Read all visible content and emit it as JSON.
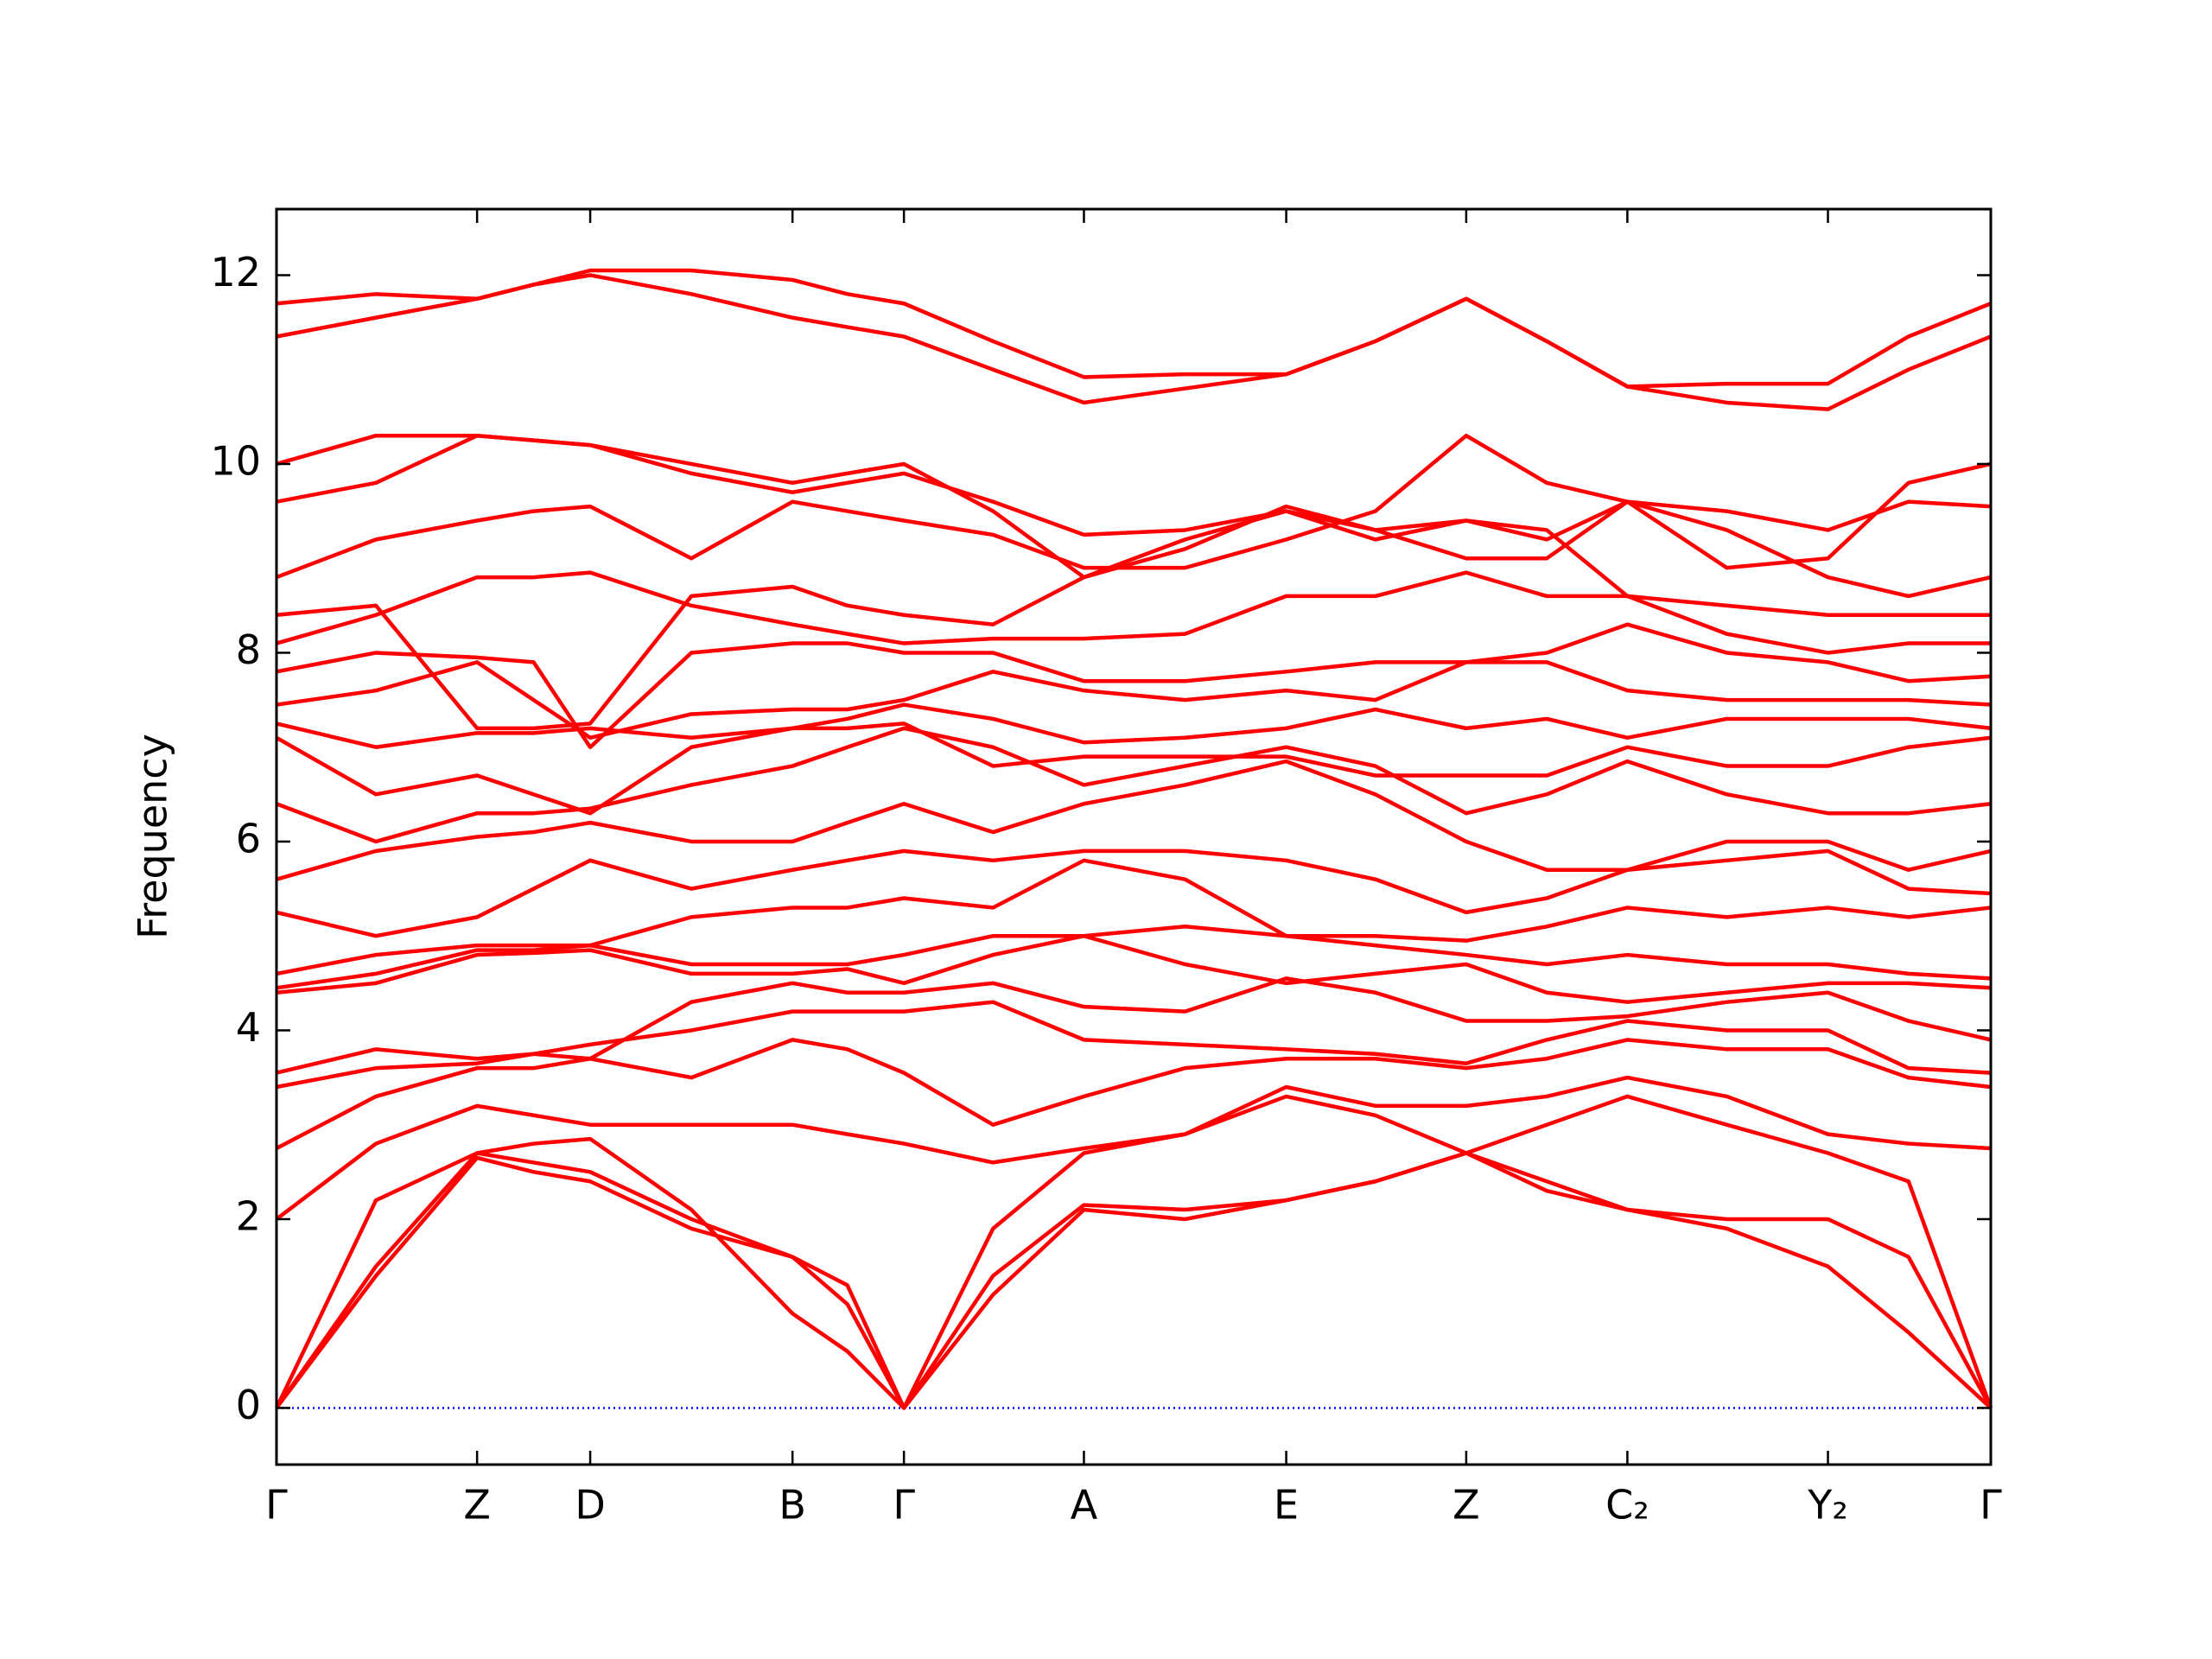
{
  "chart_data": {
    "type": "line",
    "ylabel": "Frequency",
    "color": "#ff0000",
    "ylim": [
      -0.6,
      12.7
    ],
    "yticks": [
      0,
      2,
      4,
      6,
      8,
      10,
      12
    ],
    "xlim": [
      0,
      1
    ],
    "xticks": [
      {
        "value": 0,
        "label": "Γ"
      },
      {
        "value": 0.117,
        "label": "Z"
      },
      {
        "value": 0.183,
        "label": "D"
      },
      {
        "value": 0.301,
        "label": "B"
      },
      {
        "value": 0.366,
        "label": "Γ"
      },
      {
        "value": 0.471,
        "label": "A"
      },
      {
        "value": 0.589,
        "label": "E"
      },
      {
        "value": 0.694,
        "label": "Z"
      },
      {
        "value": 0.788,
        "label": "C₂"
      },
      {
        "value": 0.905,
        "label": "Y₂"
      },
      {
        "value": 1,
        "label": "Γ"
      }
    ],
    "zero_line": {
      "value": 0,
      "color": "#0000ff"
    },
    "x": [
      0,
      0.058,
      0.117,
      0.15,
      0.183,
      0.242,
      0.301,
      0.333,
      0.366,
      0.418,
      0.471,
      0.53,
      0.589,
      0.641,
      0.694,
      0.741,
      0.788,
      0.846,
      0.905,
      0.952,
      1
    ],
    "series": [
      {
        "values": [
          0,
          1.4,
          2.65,
          2.5,
          2.4,
          1.9,
          1.6,
          1.1,
          0,
          1.2,
          2.1,
          2.0,
          2.2,
          2.4,
          2.7,
          2.3,
          2.1,
          1.9,
          1.5,
          0.8,
          0
        ]
      },
      {
        "values": [
          0,
          1.5,
          2.7,
          2.6,
          2.5,
          2.0,
          1.6,
          1.3,
          0,
          1.4,
          2.15,
          2.1,
          2.2,
          2.4,
          2.7,
          2.4,
          2.1,
          2.0,
          2.0,
          1.6,
          0
        ]
      },
      {
        "values": [
          0,
          2.2,
          2.7,
          2.8,
          2.85,
          2.1,
          1.0,
          0.6,
          0,
          1.9,
          2.7,
          2.9,
          3.3,
          3.1,
          2.7,
          3.0,
          3.3,
          3.0,
          2.7,
          2.4,
          0
        ]
      },
      {
        "values": [
          2.0,
          2.8,
          3.2,
          3.1,
          3.0,
          3.0,
          3.0,
          2.9,
          2.8,
          2.6,
          2.75,
          2.9,
          3.4,
          3.2,
          3.2,
          3.3,
          3.5,
          3.3,
          2.9,
          2.8,
          2.75
        ]
      },
      {
        "values": [
          2.75,
          3.3,
          3.6,
          3.6,
          3.7,
          3.5,
          3.9,
          3.8,
          3.55,
          3.0,
          3.3,
          3.6,
          3.7,
          3.7,
          3.6,
          3.7,
          3.9,
          3.8,
          3.8,
          3.5,
          3.4
        ]
      },
      {
        "values": [
          3.4,
          3.6,
          3.65,
          3.75,
          3.85,
          4.0,
          4.2,
          4.2,
          4.2,
          4.3,
          3.9,
          3.85,
          3.8,
          3.75,
          3.65,
          3.9,
          4.1,
          4.0,
          4.0,
          3.6,
          3.55
        ]
      },
      {
        "values": [
          3.55,
          3.8,
          3.7,
          3.75,
          3.7,
          4.3,
          4.5,
          4.4,
          4.4,
          4.5,
          4.25,
          4.2,
          4.55,
          4.4,
          4.1,
          4.1,
          4.15,
          4.3,
          4.4,
          4.1,
          3.9
        ]
      },
      {
        "values": [
          4.4,
          4.5,
          4.8,
          4.82,
          4.85,
          4.6,
          4.6,
          4.65,
          4.5,
          4.8,
          5.0,
          4.7,
          4.5,
          4.6,
          4.7,
          4.4,
          4.3,
          4.4,
          4.5,
          4.5,
          4.45
        ]
      },
      {
        "values": [
          4.45,
          4.6,
          4.85,
          4.85,
          4.9,
          4.7,
          4.7,
          4.7,
          4.8,
          5.0,
          5.0,
          5.1,
          5.0,
          4.9,
          4.8,
          4.7,
          4.8,
          4.7,
          4.7,
          4.6,
          4.55
        ]
      },
      {
        "values": [
          4.6,
          4.8,
          4.9,
          4.9,
          4.9,
          5.2,
          5.3,
          5.3,
          5.4,
          5.3,
          5.8,
          5.6,
          5.0,
          5.0,
          4.95,
          5.1,
          5.3,
          5.2,
          5.3,
          5.2,
          5.3
        ]
      },
      {
        "values": [
          5.25,
          5.0,
          5.2,
          5.5,
          5.8,
          5.5,
          5.7,
          5.8,
          5.9,
          5.8,
          5.9,
          5.9,
          5.8,
          5.6,
          5.25,
          5.4,
          5.7,
          5.8,
          5.9,
          5.5,
          5.45
        ]
      },
      {
        "values": [
          5.6,
          5.9,
          6.05,
          6.1,
          6.2,
          6.0,
          6.0,
          6.2,
          6.4,
          6.1,
          6.4,
          6.6,
          6.85,
          6.5,
          6.0,
          5.7,
          5.7,
          6.0,
          6.0,
          5.7,
          5.9
        ]
      },
      {
        "values": [
          6.4,
          6.0,
          6.3,
          6.3,
          6.35,
          6.6,
          6.8,
          7.0,
          7.2,
          7.0,
          6.6,
          6.8,
          7.0,
          6.8,
          6.3,
          6.5,
          6.85,
          6.5,
          6.3,
          6.3,
          6.4
        ]
      },
      {
        "values": [
          7.1,
          6.5,
          6.7,
          6.5,
          6.3,
          7.0,
          7.2,
          7.2,
          7.25,
          6.8,
          6.9,
          6.9,
          6.9,
          6.7,
          6.7,
          6.7,
          7.0,
          6.8,
          6.8,
          7.0,
          7.1
        ]
      },
      {
        "values": [
          7.25,
          7.0,
          7.15,
          7.15,
          7.2,
          7.1,
          7.2,
          7.3,
          7.45,
          7.3,
          7.05,
          7.1,
          7.2,
          7.4,
          7.2,
          7.3,
          7.1,
          7.3,
          7.3,
          7.3,
          7.2
        ]
      },
      {
        "values": [
          7.45,
          7.6,
          7.9,
          7.5,
          7.1,
          7.35,
          7.4,
          7.4,
          7.5,
          7.8,
          7.6,
          7.5,
          7.6,
          7.5,
          7.9,
          7.9,
          7.6,
          7.5,
          7.5,
          7.5,
          7.45
        ]
      },
      {
        "values": [
          7.8,
          8.0,
          7.95,
          7.9,
          7.0,
          8.0,
          8.1,
          8.1,
          8.0,
          8.0,
          7.7,
          7.7,
          7.8,
          7.9,
          7.9,
          8.0,
          8.3,
          8.0,
          7.9,
          7.7,
          7.75
        ]
      },
      {
        "values": [
          8.1,
          8.4,
          8.8,
          8.8,
          8.85,
          8.5,
          8.3,
          8.2,
          8.1,
          8.15,
          8.15,
          8.2,
          8.6,
          8.6,
          8.85,
          8.6,
          8.6,
          8.2,
          8.0,
          8.1,
          8.1
        ]
      },
      {
        "values": [
          8.4,
          8.5,
          7.2,
          7.2,
          7.25,
          8.6,
          8.7,
          8.5,
          8.4,
          8.3,
          8.8,
          9.1,
          9.55,
          9.3,
          9.4,
          9.3,
          8.6,
          8.5,
          8.4,
          8.4,
          8.4
        ]
      },
      {
        "values": [
          8.8,
          9.2,
          9.4,
          9.5,
          9.55,
          9.0,
          9.6,
          9.5,
          9.4,
          9.25,
          8.9,
          8.9,
          9.2,
          9.5,
          10.3,
          9.8,
          9.6,
          9.3,
          8.8,
          8.6,
          8.8
        ]
      },
      {
        "values": [
          9.6,
          9.8,
          10.3,
          10.25,
          10.2,
          9.9,
          9.7,
          9.8,
          9.9,
          9.6,
          9.25,
          9.3,
          9.5,
          9.2,
          9.4,
          9.2,
          9.6,
          9.5,
          9.3,
          9.6,
          9.55
        ]
      },
      {
        "values": [
          10.0,
          10.3,
          10.3,
          10.25,
          10.2,
          10.0,
          9.8,
          9.9,
          10.0,
          9.5,
          8.8,
          9.2,
          9.5,
          9.3,
          9.0,
          9.0,
          9.6,
          8.9,
          9.0,
          9.8,
          10.0
        ]
      },
      {
        "values": [
          11.35,
          11.55,
          11.75,
          11.9,
          12.0,
          11.8,
          11.55,
          11.45,
          11.35,
          11.0,
          10.65,
          10.8,
          10.95,
          11.3,
          11.75,
          11.3,
          10.82,
          10.65,
          10.58,
          11.0,
          11.35
        ]
      },
      {
        "values": [
          11.7,
          11.8,
          11.75,
          11.9,
          12.05,
          12.05,
          11.95,
          11.8,
          11.7,
          11.3,
          10.92,
          10.95,
          10.95,
          11.3,
          11.75,
          11.3,
          10.82,
          10.85,
          10.85,
          11.35,
          11.7
        ]
      }
    ]
  }
}
